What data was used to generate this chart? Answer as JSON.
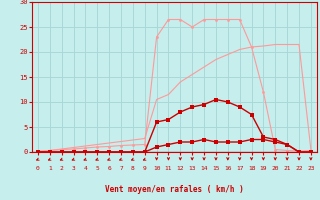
{
  "xlabel": "Vent moyen/en rafales ( km/h )",
  "xlim": [
    -0.5,
    23.5
  ],
  "ylim": [
    0,
    30
  ],
  "xticks": [
    0,
    1,
    2,
    3,
    4,
    5,
    6,
    7,
    8,
    9,
    10,
    11,
    12,
    13,
    14,
    15,
    16,
    17,
    18,
    19,
    20,
    21,
    22,
    23
  ],
  "yticks": [
    0,
    5,
    10,
    15,
    20,
    25,
    30
  ],
  "bg_color": "#c5eeed",
  "grid_color": "#a8d8d8",
  "dark_red": "#cc0000",
  "light_red": "#ff9999",
  "curve_light_line_x": [
    0,
    1,
    2,
    3,
    4,
    5,
    6,
    7,
    8,
    9,
    10,
    11,
    12,
    13,
    14,
    15,
    16,
    17,
    18,
    19,
    20,
    21,
    22,
    23
  ],
  "curve_light_line_y": [
    0,
    0.3,
    0.6,
    0.9,
    1.2,
    1.5,
    1.8,
    2.1,
    2.4,
    2.7,
    10.5,
    11.5,
    14.0,
    15.5,
    17.0,
    18.5,
    19.5,
    20.5,
    21.0,
    21.2,
    21.5,
    21.5,
    21.5,
    0.5
  ],
  "curve_light_dots_x": [
    0,
    1,
    2,
    3,
    4,
    5,
    6,
    7,
    8,
    9,
    10,
    11,
    12,
    13,
    14,
    15,
    16,
    17,
    18,
    19,
    20,
    21,
    22,
    23
  ],
  "curve_light_dots_y": [
    0.2,
    0.3,
    0.5,
    0.6,
    0.8,
    1.0,
    1.1,
    1.3,
    1.4,
    1.5,
    23.0,
    26.5,
    26.5,
    25.0,
    26.5,
    26.5,
    26.5,
    26.5,
    21.0,
    12.0,
    0.5,
    0.3,
    0.2,
    0.3
  ],
  "curve_dark_hump_x": [
    0,
    1,
    2,
    3,
    4,
    5,
    6,
    7,
    8,
    9,
    10,
    11,
    12,
    13,
    14,
    15,
    16,
    17,
    18,
    19,
    20,
    21,
    22,
    23
  ],
  "curve_dark_hump_y": [
    0,
    0,
    0,
    0,
    0,
    0,
    0,
    0,
    0,
    0,
    6.0,
    6.5,
    8.0,
    9.0,
    9.5,
    10.5,
    10.0,
    9.0,
    7.5,
    3.0,
    2.5,
    1.5,
    0,
    0
  ],
  "curve_dark_flat_x": [
    0,
    1,
    2,
    3,
    4,
    5,
    6,
    7,
    8,
    9,
    10,
    11,
    12,
    13,
    14,
    15,
    16,
    17,
    18,
    19,
    20,
    21,
    22,
    23
  ],
  "curve_dark_flat_y": [
    0,
    0,
    0,
    0,
    0,
    0,
    0,
    0,
    0,
    0,
    1.0,
    1.5,
    2.0,
    2.0,
    2.5,
    2.0,
    2.0,
    2.0,
    2.5,
    2.5,
    2.0,
    1.5,
    0,
    0
  ],
  "arrow_angles_deg": [
    225,
    225,
    225,
    225,
    225,
    225,
    225,
    225,
    225,
    225,
    270,
    270,
    270,
    270,
    270,
    270,
    270,
    270,
    270,
    270,
    270,
    270,
    270,
    270
  ]
}
